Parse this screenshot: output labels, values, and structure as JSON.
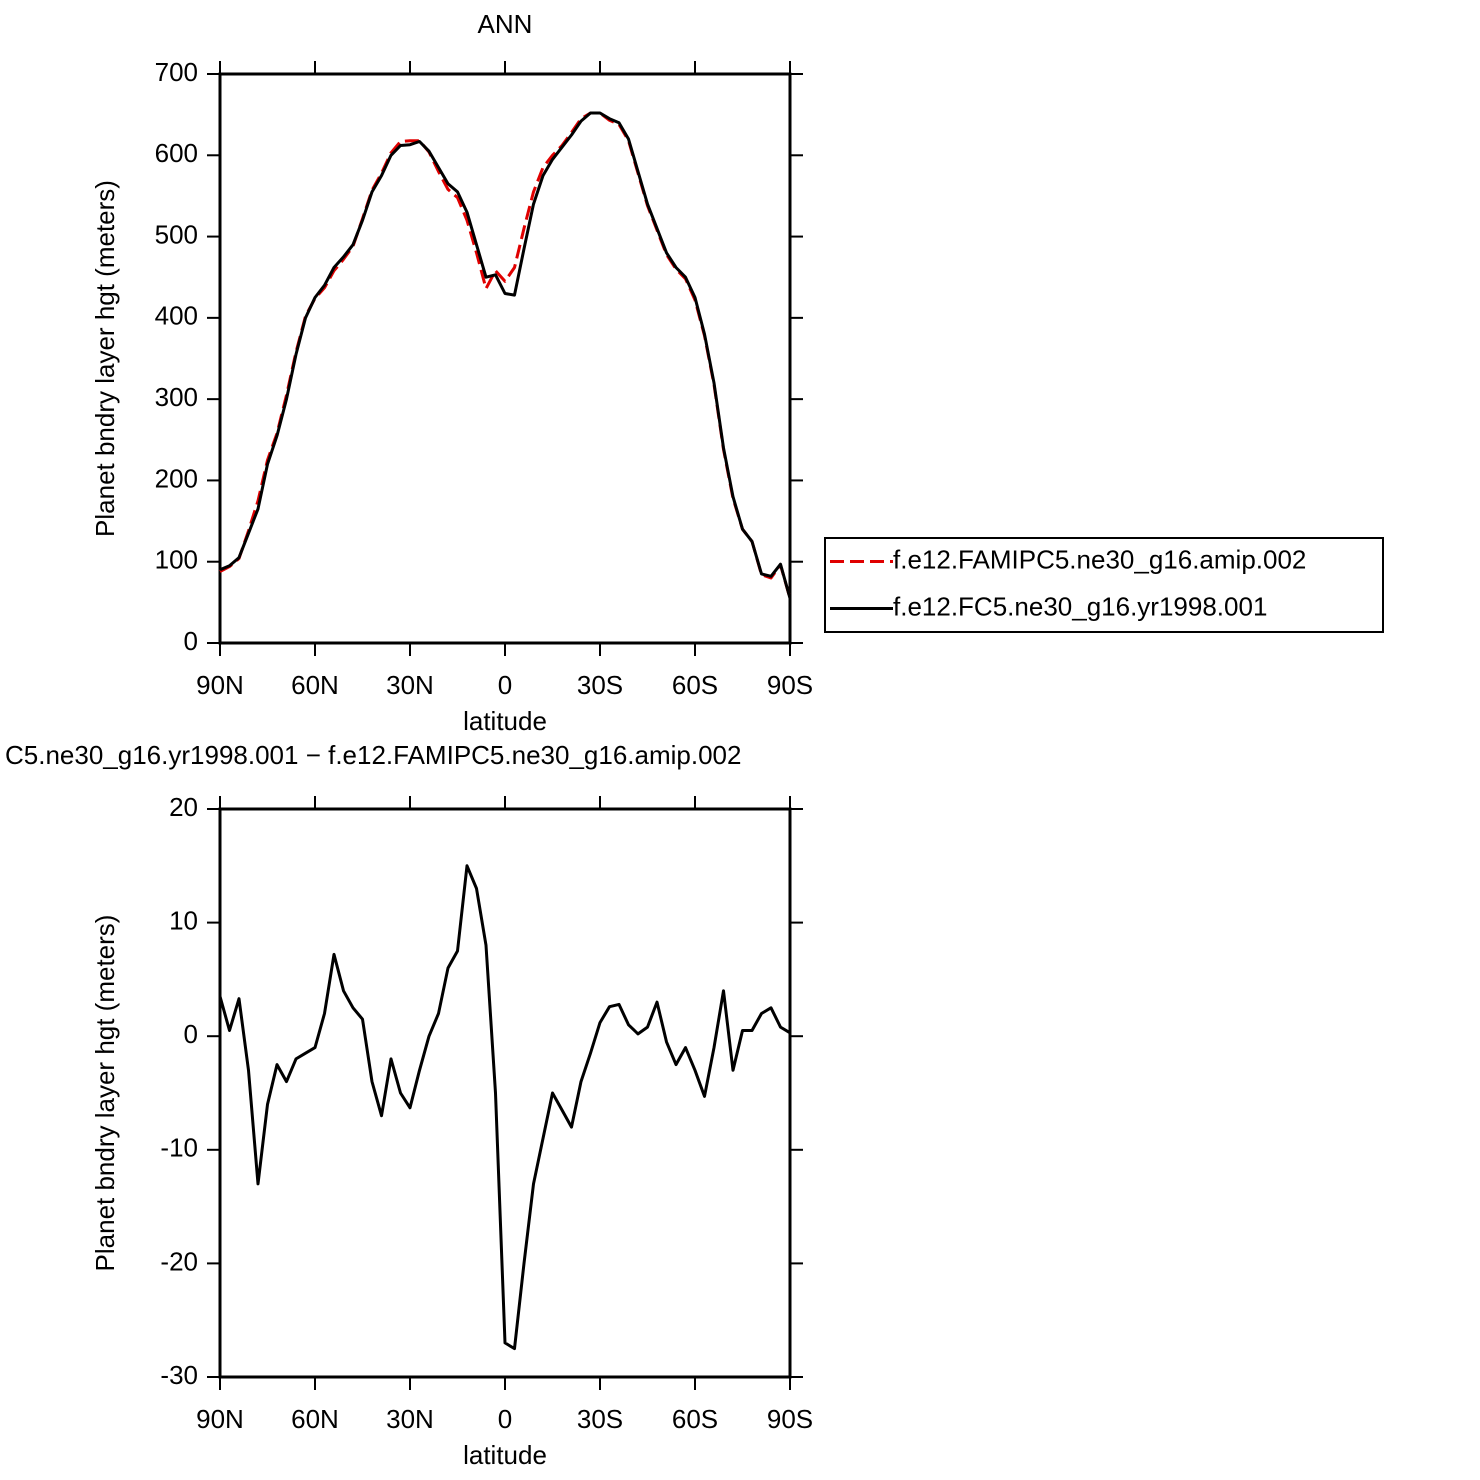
{
  "chart_data": [
    {
      "type": "line",
      "title": "ANN",
      "xlabel": "latitude",
      "ylabel": "Planet bndry layer hgt (meters)",
      "x": [
        90,
        87,
        84,
        81,
        78,
        75,
        72,
        69,
        66,
        63,
        60,
        57,
        54,
        51,
        48,
        45,
        42,
        39,
        36,
        33,
        30,
        27,
        24,
        21,
        18,
        15,
        12,
        9,
        6,
        3,
        0,
        -3,
        -6,
        -9,
        -12,
        -15,
        -18,
        -21,
        -24,
        -27,
        -30,
        -33,
        -36,
        -39,
        -42,
        -45,
        -48,
        -51,
        -54,
        -57,
        -60,
        -63,
        -66,
        -69,
        -72,
        -75,
        -78,
        -81,
        -84,
        -87,
        -90
      ],
      "xlim": [
        90,
        -90
      ],
      "xticks": [
        {
          "value": 90,
          "label": "90N"
        },
        {
          "value": 60,
          "label": "60N"
        },
        {
          "value": 30,
          "label": "30N"
        },
        0,
        {
          "value": -30,
          "label": "30S"
        },
        {
          "value": -60,
          "label": "60S"
        },
        {
          "value": -90,
          "label": "90S"
        }
      ],
      "ylim": [
        0,
        700
      ],
      "yticks": [
        0,
        100,
        200,
        300,
        400,
        500,
        600,
        700
      ],
      "legend": "outside-right",
      "series": [
        {
          "name": "f.e12.FAMIPC5.ne30_g16.amip.002",
          "color": "#e00000",
          "dash": "dashed",
          "values": [
            88,
            94,
            104,
            138,
            175,
            225,
            258,
            305,
            358,
            402,
            424,
            437,
            458,
            472,
            488,
            522,
            557,
            578,
            603,
            617,
            618,
            618,
            604,
            580,
            558,
            548,
            520,
            480,
            436,
            458,
            445,
            462,
            510,
            555,
            585,
            600,
            612,
            628,
            645,
            652,
            652,
            643,
            638,
            618,
            578,
            538,
            508,
            478,
            460,
            448,
            422,
            378,
            318,
            238,
            178,
            140,
            125,
            84,
            80,
            96,
            55
          ]
        },
        {
          "name": "f.e12.FC5.ne30_g16.yr1998.001",
          "color": "#000000",
          "dash": "solid",
          "values": [
            90,
            95,
            105,
            135,
            165,
            220,
            255,
            300,
            355,
            400,
            425,
            440,
            462,
            475,
            490,
            520,
            555,
            575,
            600,
            612,
            613,
            617,
            605,
            585,
            565,
            555,
            530,
            490,
            450,
            453,
            430,
            428,
            485,
            540,
            575,
            595,
            610,
            625,
            642,
            652,
            652,
            645,
            640,
            620,
            580,
            540,
            510,
            480,
            462,
            450,
            425,
            380,
            320,
            240,
            180,
            140,
            125,
            85,
            82,
            97,
            55
          ]
        }
      ]
    },
    {
      "type": "line",
      "title": "C5.ne30_g16.yr1998.001 − f.e12.FAMIPC5.ne30_g16.amip.002",
      "xlabel": "latitude",
      "ylabel": "Planet bndry layer hgt (meters)",
      "x": [
        90,
        87,
        84,
        81,
        78,
        75,
        72,
        69,
        66,
        63,
        60,
        57,
        54,
        51,
        48,
        45,
        42,
        39,
        36,
        33,
        30,
        27,
        24,
        21,
        18,
        15,
        12,
        9,
        6,
        3,
        0,
        -3,
        -6,
        -9,
        -12,
        -15,
        -18,
        -21,
        -24,
        -27,
        -30,
        -33,
        -36,
        -39,
        -42,
        -45,
        -48,
        -51,
        -54,
        -57,
        -60,
        -63,
        -66,
        -69,
        -72,
        -75,
        -78,
        -81,
        -84,
        -87,
        -90
      ],
      "xlim": [
        90,
        -90
      ],
      "xticks": [
        {
          "value": 90,
          "label": "90N"
        },
        {
          "value": 60,
          "label": "60N"
        },
        {
          "value": 30,
          "label": "30N"
        },
        0,
        {
          "value": -30,
          "label": "30S"
        },
        {
          "value": -60,
          "label": "60S"
        },
        {
          "value": -90,
          "label": "90S"
        }
      ],
      "ylim": [
        -30,
        20
      ],
      "yticks": [
        -30,
        -20,
        -10,
        0,
        10,
        20
      ],
      "color": "#000000",
      "values": [
        3.5,
        0.5,
        3.3,
        -3,
        -13,
        -6,
        -2.5,
        -4,
        -2,
        -1.5,
        -1,
        2,
        7.2,
        4,
        2.5,
        1.5,
        -4,
        -7,
        -2,
        -5,
        -6.3,
        -3,
        0,
        2,
        6,
        7.5,
        15,
        13,
        8,
        -5,
        -27,
        -27.5,
        -20,
        -13,
        -9,
        -5,
        -6.5,
        -8,
        -4,
        -1.5,
        1.2,
        2.6,
        2.8,
        1,
        0.2,
        0.8,
        3,
        -0.5,
        -2.5,
        -1,
        -3,
        -5.3,
        -1,
        4,
        -3,
        0.5,
        0.5,
        2,
        2.5,
        0.8,
        0.3
      ]
    }
  ]
}
